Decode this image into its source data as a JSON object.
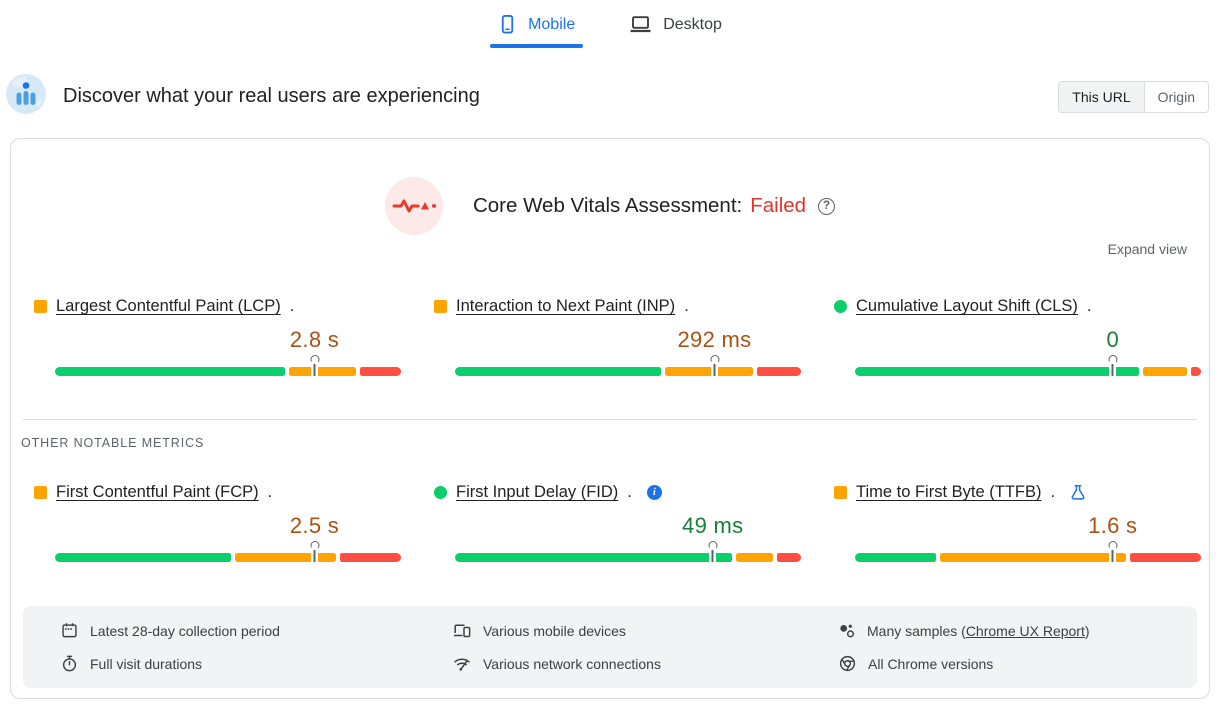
{
  "device_tabs": [
    {
      "label": "Mobile",
      "active": true
    },
    {
      "label": "Desktop",
      "active": false
    }
  ],
  "field_section": {
    "title": "Discover what your real users are experiencing",
    "scope_toggle": {
      "options": [
        {
          "label": "This URL",
          "selected": true
        },
        {
          "label": "Origin",
          "selected": false
        }
      ]
    }
  },
  "assessment": {
    "title": "Core Web Vitals Assessment:",
    "status": "Failed",
    "expand_label": "Expand view"
  },
  "metrics": {
    "label_suffix": ".",
    "core": [
      {
        "label": "Largest Contentful Paint (LCP)",
        "value": "2.8 s",
        "rating": "needs-improvement",
        "distribution": {
          "good": 68,
          "needs_improvement": 20,
          "poor": 12
        },
        "p75_marker_percent": 75
      },
      {
        "label": "Interaction to Next Paint (INP)",
        "value": "292 ms",
        "rating": "needs-improvement",
        "distribution": {
          "good": 61,
          "needs_improvement": 26,
          "poor": 13
        },
        "p75_marker_percent": 75
      },
      {
        "label": "Cumulative Layout Shift (CLS)",
        "value": "0",
        "rating": "good",
        "distribution": {
          "good": 84,
          "needs_improvement": 13,
          "poor": 3
        },
        "p75_marker_percent": 74.5
      }
    ],
    "other_section_title": "OTHER NOTABLE METRICS",
    "other": [
      {
        "label": "First Contentful Paint (FCP)",
        "value": "2.5 s",
        "rating": "needs-improvement",
        "distribution": {
          "good": 52,
          "needs_improvement": 30,
          "poor": 18
        },
        "p75_marker_percent": 75
      },
      {
        "label": "First Input Delay (FID)",
        "value": "49 ms",
        "rating": "good",
        "badge": "info",
        "distribution": {
          "good": 82,
          "needs_improvement": 11,
          "poor": 7
        },
        "p75_marker_percent": 74.5
      },
      {
        "label": "Time to First Byte (TTFB)",
        "value": "1.6 s",
        "rating": "needs-improvement",
        "badge": "experimental",
        "distribution": {
          "good": 24,
          "needs_improvement": 55,
          "poor": 21
        },
        "p75_marker_percent": 74.5
      }
    ]
  },
  "footer": {
    "items": [
      {
        "icon": "calendar-icon",
        "text": "Latest 28-day collection period"
      },
      {
        "icon": "devices-icon",
        "text": "Various mobile devices"
      },
      {
        "icon": "samples-icon",
        "text_prefix": "Many samples (",
        "link_text": "Chrome UX Report",
        "text_suffix": ")"
      },
      {
        "icon": "stopwatch-icon",
        "text": "Full visit durations"
      },
      {
        "icon": "network-icon",
        "text": "Various network connections"
      },
      {
        "icon": "chrome-icon",
        "text": "All Chrome versions"
      }
    ]
  },
  "colors": {
    "good": "#0cce6b",
    "ni": "#ffa400",
    "poor": "#ff4e42",
    "good_text": "#188038",
    "ni_text": "#a85216",
    "failed": "#e3342a",
    "blue": "#1a73e8",
    "border": "#dadce0",
    "footer_bg": "#f1f3f4"
  }
}
